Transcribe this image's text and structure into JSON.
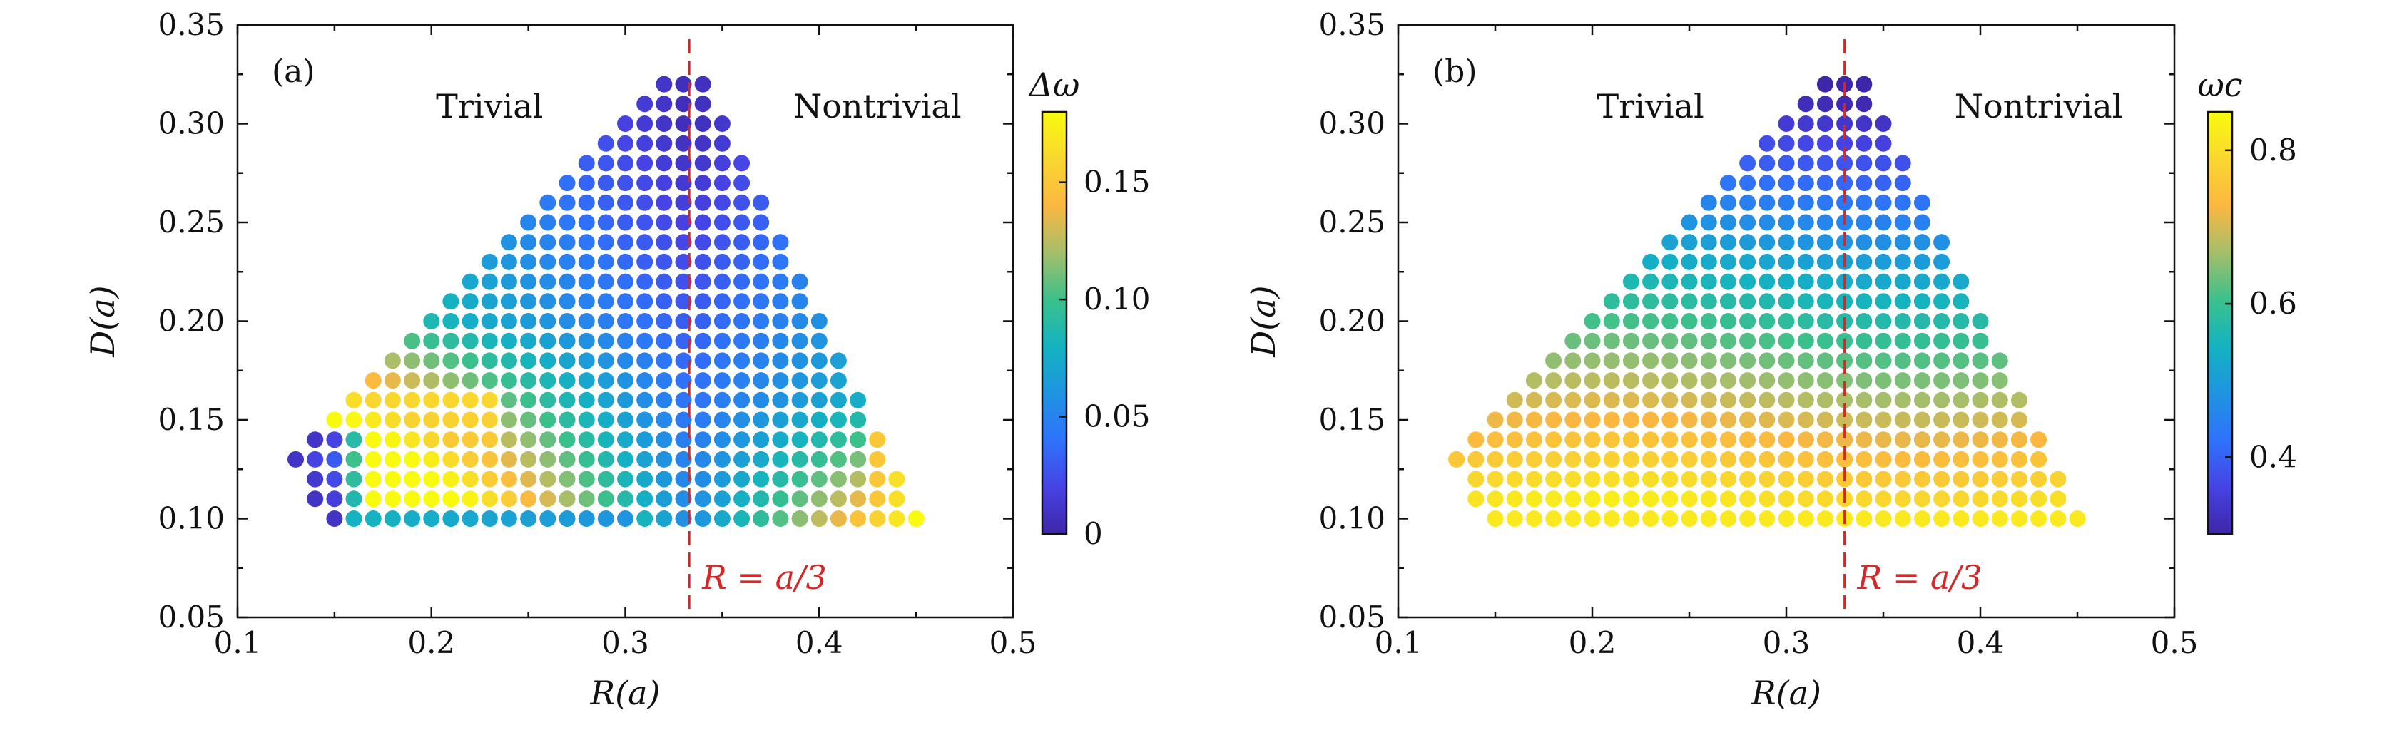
{
  "colors": {
    "annotation": "#d62728",
    "colormap": [
      "#3e26a8",
      "#4643e4",
      "#2f72fb",
      "#1f94e0",
      "#14b3c1",
      "#3cc08b",
      "#a5be6b",
      "#fbb741",
      "#f9d72f",
      "#f9fb0e"
    ]
  },
  "chart_data": [
    {
      "type": "scatter",
      "panel_label": "(a)",
      "xlabel": "R(a)",
      "ylabel": "D(a)",
      "xlim": [
        0.1,
        0.5
      ],
      "ylim": [
        0.05,
        0.35
      ],
      "xticks": [
        "0.1",
        "0.2",
        "0.3",
        "0.4",
        "0.5"
      ],
      "yticks": [
        "0.05",
        "0.10",
        "0.15",
        "0.20",
        "0.25",
        "0.30",
        "0.35"
      ],
      "regions": [
        "Trivial",
        "Nontrivial"
      ],
      "vline": {
        "x": 0.333,
        "label": "R = a/3"
      },
      "grid": {
        "x_start": 0.13,
        "x_step": 0.01,
        "y_start": 0.1,
        "y_step": 0.01,
        "x_count": 33,
        "y_count": 23
      },
      "colorbar": {
        "title": "Δω",
        "ticks": [
          "0",
          "0.05",
          "0.10",
          "0.15"
        ],
        "tick_values": [
          0,
          0.05,
          0.1,
          0.15
        ],
        "range": [
          0,
          0.18
        ]
      },
      "color_field": {
        "variable": "Δω",
        "min": 0.0,
        "max": 0.18
      },
      "rows": [
        {
          "y": 0.1,
          "x_min": 0.15,
          "x_max": 0.45
        },
        {
          "y": 0.11,
          "x_min": 0.14,
          "x_max": 0.44
        },
        {
          "y": 0.12,
          "x_min": 0.14,
          "x_max": 0.44
        },
        {
          "y": 0.13,
          "x_min": 0.13,
          "x_max": 0.43
        },
        {
          "y": 0.14,
          "x_min": 0.14,
          "x_max": 0.43
        },
        {
          "y": 0.15,
          "x_min": 0.15,
          "x_max": 0.42
        },
        {
          "y": 0.16,
          "x_min": 0.16,
          "x_max": 0.42
        },
        {
          "y": 0.17,
          "x_min": 0.17,
          "x_max": 0.41
        },
        {
          "y": 0.18,
          "x_min": 0.18,
          "x_max": 0.41
        },
        {
          "y": 0.19,
          "x_min": 0.19,
          "x_max": 0.4
        },
        {
          "y": 0.2,
          "x_min": 0.2,
          "x_max": 0.4
        },
        {
          "y": 0.21,
          "x_min": 0.21,
          "x_max": 0.39
        },
        {
          "y": 0.22,
          "x_min": 0.22,
          "x_max": 0.39
        },
        {
          "y": 0.23,
          "x_min": 0.23,
          "x_max": 0.38
        },
        {
          "y": 0.24,
          "x_min": 0.24,
          "x_max": 0.38
        },
        {
          "y": 0.25,
          "x_min": 0.25,
          "x_max": 0.37
        },
        {
          "y": 0.26,
          "x_min": 0.26,
          "x_max": 0.37
        },
        {
          "y": 0.27,
          "x_min": 0.27,
          "x_max": 0.36
        },
        {
          "y": 0.28,
          "x_min": 0.28,
          "x_max": 0.36
        },
        {
          "y": 0.29,
          "x_min": 0.29,
          "x_max": 0.35
        },
        {
          "y": 0.3,
          "x_min": 0.3,
          "x_max": 0.35
        },
        {
          "y": 0.31,
          "x_min": 0.31,
          "x_max": 0.34
        },
        {
          "y": 0.32,
          "x_min": 0.32,
          "x_max": 0.34
        }
      ]
    },
    {
      "type": "scatter",
      "panel_label": "(b)",
      "xlabel": "R(a)",
      "ylabel": "D(a)",
      "xlim": [
        0.1,
        0.5
      ],
      "ylim": [
        0.05,
        0.35
      ],
      "xticks": [
        "0.1",
        "0.2",
        "0.3",
        "0.4",
        "0.5"
      ],
      "yticks": [
        "0.05",
        "0.10",
        "0.15",
        "0.20",
        "0.25",
        "0.30",
        "0.35"
      ],
      "regions": [
        "Trivial",
        "Nontrivial"
      ],
      "vline": {
        "x": 0.33,
        "label": "R = a/3"
      },
      "colorbar": {
        "title": "ωc",
        "ticks": [
          "0.4",
          "0.6",
          "0.8"
        ],
        "tick_values": [
          0.4,
          0.6,
          0.8
        ],
        "range": [
          0.3,
          0.85
        ]
      },
      "color_field": {
        "variable": "ωc",
        "min": 0.3,
        "max": 0.85
      },
      "rows": [
        {
          "y": 0.1,
          "x_min": 0.15,
          "x_max": 0.45
        },
        {
          "y": 0.11,
          "x_min": 0.14,
          "x_max": 0.44
        },
        {
          "y": 0.12,
          "x_min": 0.14,
          "x_max": 0.44
        },
        {
          "y": 0.13,
          "x_min": 0.13,
          "x_max": 0.43
        },
        {
          "y": 0.14,
          "x_min": 0.14,
          "x_max": 0.43
        },
        {
          "y": 0.15,
          "x_min": 0.15,
          "x_max": 0.42
        },
        {
          "y": 0.16,
          "x_min": 0.16,
          "x_max": 0.42
        },
        {
          "y": 0.17,
          "x_min": 0.17,
          "x_max": 0.41
        },
        {
          "y": 0.18,
          "x_min": 0.18,
          "x_max": 0.41
        },
        {
          "y": 0.19,
          "x_min": 0.19,
          "x_max": 0.4
        },
        {
          "y": 0.2,
          "x_min": 0.2,
          "x_max": 0.4
        },
        {
          "y": 0.21,
          "x_min": 0.21,
          "x_max": 0.39
        },
        {
          "y": 0.22,
          "x_min": 0.22,
          "x_max": 0.39
        },
        {
          "y": 0.23,
          "x_min": 0.23,
          "x_max": 0.38
        },
        {
          "y": 0.24,
          "x_min": 0.24,
          "x_max": 0.38
        },
        {
          "y": 0.25,
          "x_min": 0.25,
          "x_max": 0.37
        },
        {
          "y": 0.26,
          "x_min": 0.26,
          "x_max": 0.37
        },
        {
          "y": 0.27,
          "x_min": 0.27,
          "x_max": 0.36
        },
        {
          "y": 0.28,
          "x_min": 0.28,
          "x_max": 0.36
        },
        {
          "y": 0.29,
          "x_min": 0.29,
          "x_max": 0.35
        },
        {
          "y": 0.3,
          "x_min": 0.3,
          "x_max": 0.35
        },
        {
          "y": 0.31,
          "x_min": 0.31,
          "x_max": 0.34
        },
        {
          "y": 0.32,
          "x_min": 0.32,
          "x_max": 0.34
        }
      ]
    }
  ]
}
